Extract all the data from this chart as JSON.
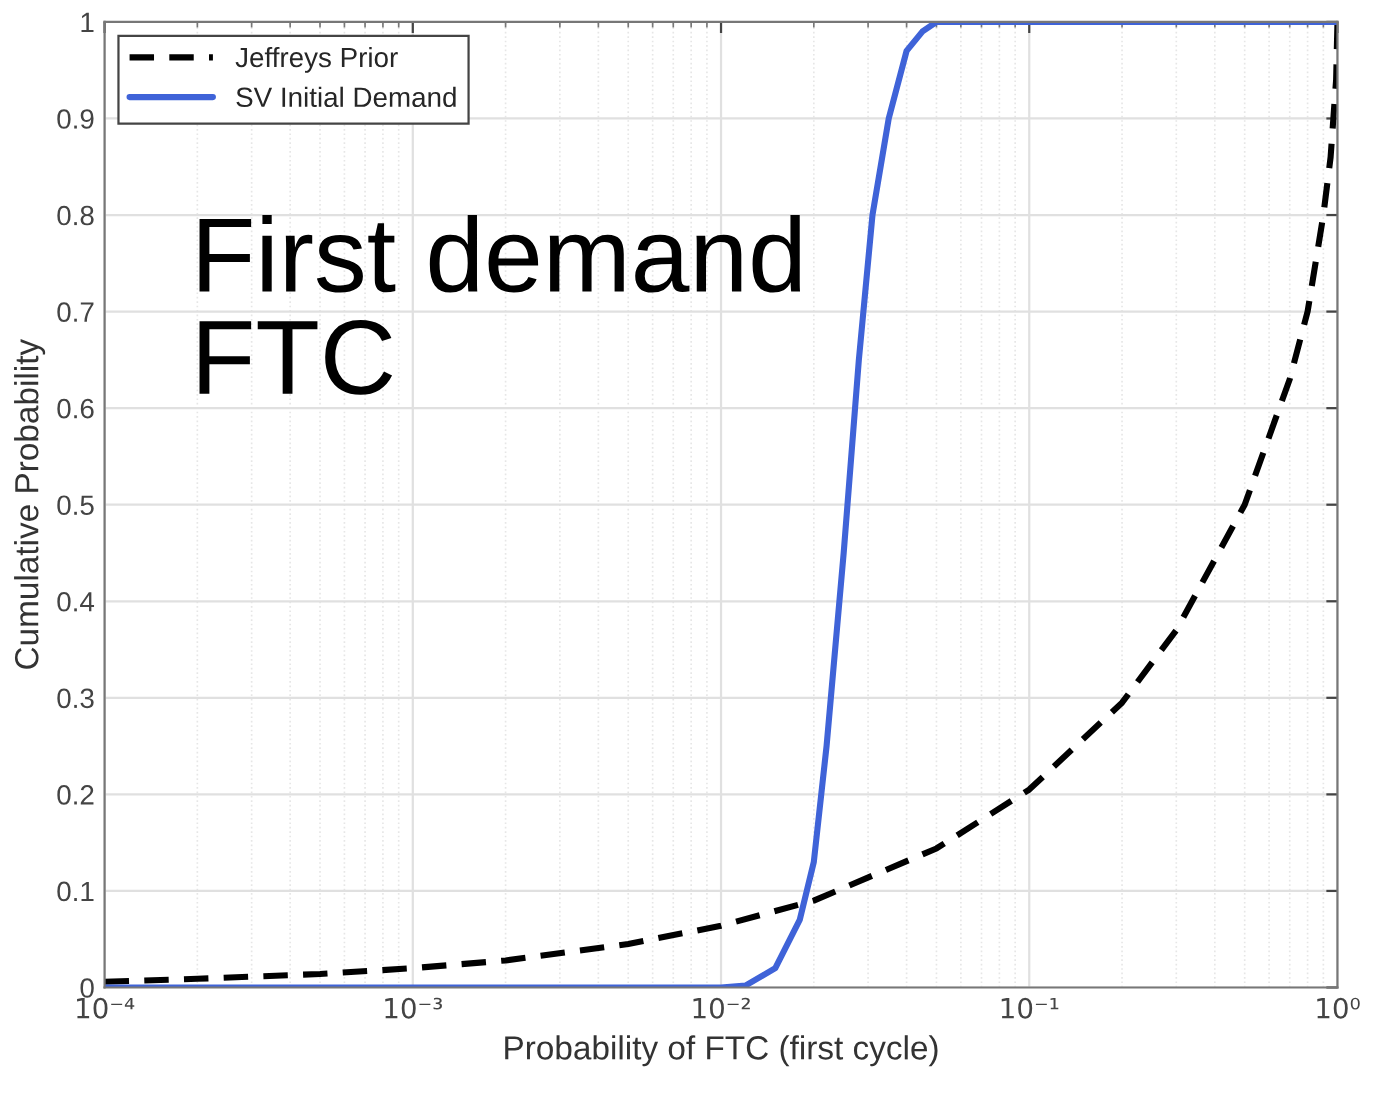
{
  "chart_data": {
    "type": "line",
    "xlabel": "Probability of FTC (first cycle)",
    "ylabel": "Cumulative Probability",
    "annotations": [
      "First demand\nFTC"
    ],
    "log": "x",
    "grid": true,
    "legend": "top left",
    "marker": "none",
    "xlim": [
      0.0001,
      1
    ],
    "xticks": [
      {
        "value": 0.0001,
        "label": "10⁻⁴"
      },
      {
        "value": 0.001,
        "label": "10⁻³"
      },
      {
        "value": 0.01,
        "label": "10⁻²"
      },
      {
        "value": 0.1,
        "label": "10⁻¹"
      },
      {
        "value": 1,
        "label": "10⁰"
      }
    ],
    "ylim": [
      0,
      1
    ],
    "yticks": [
      0,
      0.1,
      0.2,
      0.3,
      0.4,
      0.5,
      0.6,
      0.7,
      0.8,
      0.9,
      1
    ],
    "series": [
      {
        "name": "Jeffreys Prior",
        "color": "#000000",
        "line_style": "dashed",
        "x": [
          0.0001,
          0.0002,
          0.0005,
          0.001,
          0.002,
          0.005,
          0.01,
          0.02,
          0.05,
          0.1,
          0.2,
          0.3,
          0.5,
          0.7,
          0.8,
          0.9,
          0.95,
          0.99,
          1
        ],
        "values": [
          0.006,
          0.009,
          0.014,
          0.02,
          0.028,
          0.045,
          0.064,
          0.09,
          0.144,
          0.205,
          0.295,
          0.37,
          0.5,
          0.63,
          0.7,
          0.8,
          0.86,
          0.94,
          1
        ]
      },
      {
        "name": "SV Initial Demand",
        "color": "#3f63d8",
        "line_style": "solid",
        "x": [
          0.0001,
          0.01,
          0.012,
          0.015,
          0.018,
          0.02,
          0.022,
          0.025,
          0.028,
          0.031,
          0.035,
          0.04,
          0.045,
          0.05,
          1
        ],
        "values": [
          0,
          0,
          0.002,
          0.02,
          0.07,
          0.13,
          0.25,
          0.45,
          0.65,
          0.8,
          0.9,
          0.97,
          0.99,
          1,
          1
        ]
      }
    ]
  }
}
